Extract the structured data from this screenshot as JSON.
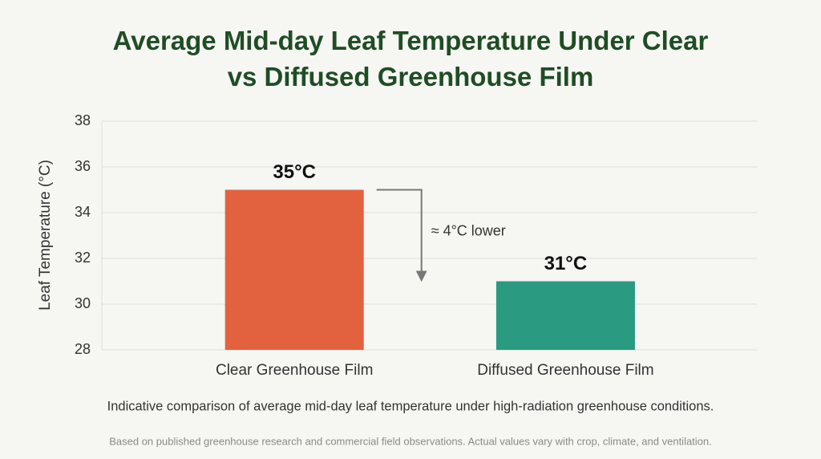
{
  "chart_data": {
    "type": "bar",
    "title": "Average Mid-day Leaf Temperature Under Clear vs Diffused Greenhouse Film",
    "ylabel": "Leaf Temperature (°C)",
    "categories": [
      "Clear Greenhouse Film",
      "Diffused Greenhouse Film"
    ],
    "values": [
      35,
      31
    ],
    "value_labels": [
      "35°C",
      "31°C"
    ],
    "colors": [
      "#e2623f",
      "#2a9a80"
    ],
    "annotation": "≈ 4°C lower",
    "caption": "Indicative comparison of average mid-day leaf temperature under high-radiation greenhouse conditions.",
    "note": "Based on published greenhouse research and commercial field observations. Actual values vary with crop, climate, and ventilation.",
    "ylim": [
      28,
      38
    ],
    "yticks": [
      28,
      30,
      32,
      34,
      36,
      38
    ],
    "grid": true
  }
}
